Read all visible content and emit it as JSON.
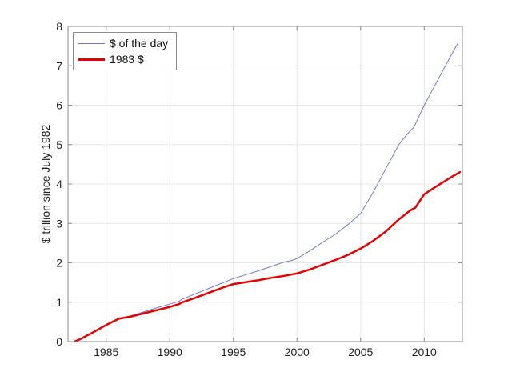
{
  "figure": {
    "background": "#ffffff"
  },
  "chart_data": {
    "type": "line",
    "title": "",
    "xlabel": "",
    "ylabel": "$ trillion since July 1982",
    "xlim": [
      1982,
      2013
    ],
    "ylim": [
      0,
      8
    ],
    "xticks": [
      1985,
      1990,
      1995,
      2000,
      2005,
      2010
    ],
    "yticks": [
      0,
      1,
      2,
      3,
      4,
      5,
      6,
      7,
      8
    ],
    "grid": true,
    "legend_position": "top-left",
    "axis_color": "#8c8c8c",
    "grid_color": "#e7e7e7",
    "tick_label_color": "#222222",
    "series": [
      {
        "name": "$ of the day",
        "color": "#7878cd",
        "width": 1,
        "x": [
          1982.5,
          1983,
          1984,
          1985,
          1986,
          1987,
          1988,
          1989,
          1990,
          1990.7,
          1991,
          1992,
          1993,
          1994,
          1995,
          1996,
          1997,
          1998,
          1999,
          1999.6,
          2000,
          2001,
          2002,
          2003,
          2004,
          2005,
          2006,
          2007,
          2008,
          2008.7,
          2009.2,
          2010,
          2011,
          2012,
          2012.6
        ],
        "y": [
          0,
          0.07,
          0.24,
          0.42,
          0.58,
          0.66,
          0.76,
          0.86,
          0.95,
          1.02,
          1.08,
          1.21,
          1.34,
          1.47,
          1.6,
          1.7,
          1.8,
          1.91,
          2.02,
          2.06,
          2.11,
          2.3,
          2.52,
          2.72,
          2.97,
          3.25,
          3.8,
          4.4,
          5.0,
          5.28,
          5.45,
          6.0,
          6.6,
          7.2,
          7.55
        ]
      },
      {
        "name": "1983 $",
        "color": "#e60000",
        "width": 2.5,
        "x": [
          1982.5,
          1983,
          1984,
          1985,
          1986,
          1987,
          1988,
          1989,
          1990,
          1990.7,
          1991,
          1992,
          1993,
          1994,
          1995,
          1996,
          1997,
          1998,
          1999,
          2000,
          2001,
          2002,
          2003,
          2004,
          2005,
          2006,
          2007,
          2008,
          2008.9,
          2009.3,
          2010,
          2011,
          2012,
          2012.8
        ],
        "y": [
          0,
          0.07,
          0.24,
          0.42,
          0.58,
          0.64,
          0.72,
          0.8,
          0.88,
          0.95,
          1.0,
          1.11,
          1.23,
          1.35,
          1.46,
          1.51,
          1.56,
          1.62,
          1.67,
          1.73,
          1.83,
          1.95,
          2.07,
          2.2,
          2.36,
          2.56,
          2.8,
          3.1,
          3.33,
          3.4,
          3.74,
          3.95,
          4.15,
          4.3
        ]
      }
    ]
  }
}
